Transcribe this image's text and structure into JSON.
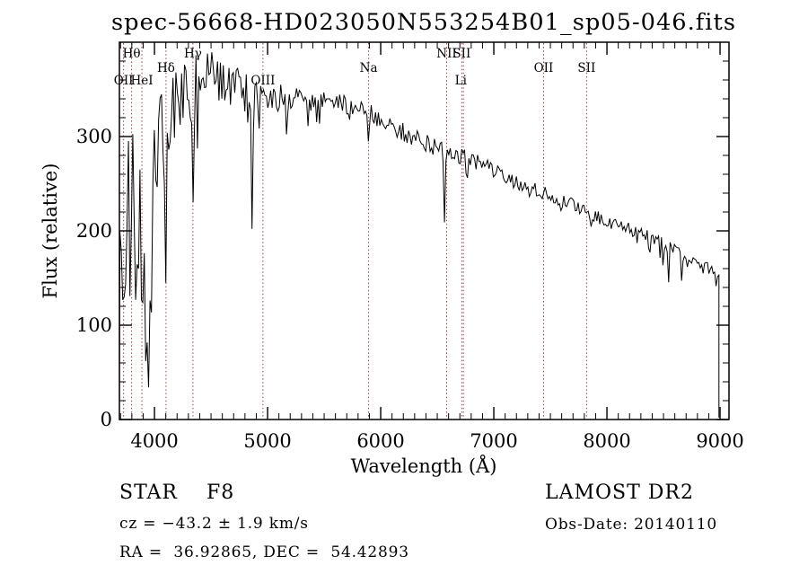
{
  "title": "spec-56668-HD023050N553254B01_sp05-046.fits",
  "colors": {
    "background": "#ffffff",
    "trace": "#000000",
    "frame": "#000000",
    "line_marker": "#9a4343",
    "text": "#000000"
  },
  "annotations": {
    "star_class_line": "STAR    F8",
    "cz_line": "cz = −43.2 ± 1.9 km/s",
    "radec_line": "RA =  36.92865, DEC =  54.42893",
    "survey_line": "LAMOST DR2",
    "obs_date_line": "Obs-Date: 20140110"
  },
  "chart_data": {
    "type": "line",
    "title": "spec-56668-HD023050N553254B01_sp05-046.fits",
    "xlabel": "Wavelength (Å)",
    "ylabel": "Flux (relative)",
    "xlim": [
      3690,
      9079
    ],
    "ylim": [
      0,
      400
    ],
    "x_ticks": [
      4000,
      5000,
      6000,
      7000,
      8000,
      9000
    ],
    "x_tick_labels": [
      "4000",
      "5000",
      "6000",
      "7000",
      "8000",
      "9000"
    ],
    "y_ticks": [
      0,
      100,
      200,
      300
    ],
    "y_tick_labels": [
      "0",
      "100",
      "200",
      "300"
    ],
    "x_minor_step": 100,
    "y_minor_step": 20,
    "grid": false,
    "legend": null,
    "series_name": "flux",
    "spectrum_range": [
      3690,
      8990
    ],
    "line_markers": [
      {
        "label": "OII",
        "wavelength": 3727,
        "row": "low",
        "line": true
      },
      {
        "label": "Hθ",
        "wavelength": 3798,
        "row": "top",
        "line": true
      },
      {
        "label": "HeI",
        "wavelength": 3889,
        "row": "low",
        "line": true
      },
      {
        "label": "Hδ",
        "wavelength": 4102,
        "row": "mid",
        "line": true
      },
      {
        "label": "Hγ",
        "wavelength": 4340,
        "row": "top",
        "line": true
      },
      {
        "label": "OIII",
        "wavelength": 4959,
        "row": "low",
        "line": true
      },
      {
        "label": "Na",
        "wavelength": 5893,
        "row": "mid",
        "line": true
      },
      {
        "label": "NII",
        "wavelength": 6583,
        "row": "top",
        "line": true
      },
      {
        "label": "SII",
        "wavelength": 6717,
        "row": "top",
        "line": true
      },
      {
        "label": "",
        "wavelength": 6731,
        "row": "top",
        "line": true
      },
      {
        "label": "Li",
        "wavelength": 6708,
        "row": "low",
        "line": false
      },
      {
        "label": "OII",
        "wavelength": 7440,
        "row": "mid",
        "line": true
      },
      {
        "label": "SII",
        "wavelength": 7820,
        "row": "mid",
        "line": true
      }
    ],
    "continuum_points": [
      [
        3690,
        170
      ],
      [
        3720,
        210
      ],
      [
        3760,
        195
      ],
      [
        3800,
        225
      ],
      [
        3850,
        200
      ],
      [
        3900,
        180
      ],
      [
        3950,
        235
      ],
      [
        4000,
        290
      ],
      [
        4060,
        315
      ],
      [
        4150,
        330
      ],
      [
        4250,
        342
      ],
      [
        4350,
        350
      ],
      [
        4450,
        358
      ],
      [
        4550,
        362
      ],
      [
        4650,
        363
      ],
      [
        4750,
        357
      ],
      [
        4850,
        350
      ],
      [
        4950,
        347
      ],
      [
        5050,
        345
      ],
      [
        5200,
        341
      ],
      [
        5350,
        338
      ],
      [
        5500,
        336
      ],
      [
        5650,
        334
      ],
      [
        5800,
        331
      ],
      [
        5900,
        325
      ],
      [
        6000,
        318
      ],
      [
        6150,
        308
      ],
      [
        6300,
        299
      ],
      [
        6450,
        291
      ],
      [
        6600,
        283
      ],
      [
        6750,
        278
      ],
      [
        6900,
        270
      ],
      [
        7050,
        260
      ],
      [
        7200,
        251
      ],
      [
        7350,
        244
      ],
      [
        7500,
        238
      ],
      [
        7650,
        230
      ],
      [
        7800,
        221
      ],
      [
        7950,
        213
      ],
      [
        8100,
        206
      ],
      [
        8250,
        199
      ],
      [
        8400,
        192
      ],
      [
        8550,
        183
      ],
      [
        8700,
        172
      ],
      [
        8850,
        163
      ],
      [
        9000,
        155
      ]
    ],
    "absorption_features": [
      {
        "center": 3933,
        "depth": 150,
        "sigma": 14
      },
      {
        "center": 3968,
        "depth": 130,
        "sigma": 12
      },
      {
        "center": 4102,
        "depth": 130,
        "sigma": 9
      },
      {
        "center": 4340,
        "depth": 110,
        "sigma": 9
      },
      {
        "center": 4383,
        "depth": 70,
        "sigma": 5
      },
      {
        "center": 4861,
        "depth": 130,
        "sigma": 8
      },
      {
        "center": 5175,
        "depth": 25,
        "sigma": 10
      },
      {
        "center": 5893,
        "depth": 42,
        "sigma": 7
      },
      {
        "center": 6563,
        "depth": 80,
        "sigma": 7
      },
      {
        "center": 7594,
        "depth": 18,
        "sigma": 10
      },
      {
        "center": 8498,
        "depth": 25,
        "sigma": 5
      },
      {
        "center": 8542,
        "depth": 40,
        "sigma": 5
      },
      {
        "center": 8662,
        "depth": 32,
        "sigma": 5
      }
    ],
    "noise_envelope": [
      [
        3690,
        115
      ],
      [
        3780,
        100
      ],
      [
        3900,
        85
      ],
      [
        3990,
        60
      ],
      [
        4100,
        50
      ],
      [
        4300,
        40
      ],
      [
        4600,
        33
      ],
      [
        4900,
        26
      ],
      [
        5100,
        13
      ],
      [
        5400,
        11
      ],
      [
        5800,
        11
      ],
      [
        6200,
        10
      ],
      [
        6600,
        9
      ],
      [
        7000,
        8
      ],
      [
        7600,
        7
      ],
      [
        8200,
        7
      ],
      [
        9000,
        6
      ]
    ]
  }
}
